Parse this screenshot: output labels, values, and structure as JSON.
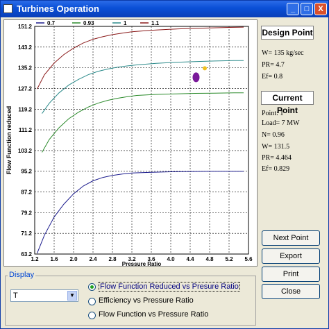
{
  "window": {
    "title": "Turbines Operation",
    "minimize": "_",
    "maximize": "□",
    "close": "X"
  },
  "chart_data": {
    "type": "line",
    "title": "",
    "xlabel": "Pressure Ratio",
    "ylabel": "Flow Function reduced",
    "xlim": [
      1.2,
      5.6
    ],
    "ylim": [
      63.2,
      151.2
    ],
    "x_ticks": [
      "1.2",
      "1.6",
      "2.0",
      "2.4",
      "2.8",
      "3.2",
      "3.6",
      "4.0",
      "4.4",
      "4.8",
      "5.2",
      "5.6"
    ],
    "y_ticks": [
      "63.2",
      "71.2",
      "79.2",
      "87.2",
      "95.2",
      "103.2",
      "111.2",
      "119.2",
      "127.2",
      "135.2",
      "143.2",
      "151.2"
    ],
    "grid": true,
    "legend_position": "top",
    "series": [
      {
        "name": "0.7",
        "color": "#1a1a8c",
        "x": [
          1.25,
          1.4,
          1.6,
          1.8,
          2.0,
          2.2,
          2.4,
          2.6,
          2.8,
          3.0,
          3.2,
          3.6,
          4.0,
          4.4,
          4.8,
          5.2,
          5.5
        ],
        "y": [
          63.5,
          70.5,
          77.5,
          82.5,
          86.5,
          89.5,
          91.5,
          92.8,
          93.6,
          94.1,
          94.5,
          94.8,
          95.0,
          95.1,
          95.2,
          95.2,
          95.2
        ]
      },
      {
        "name": "0.93",
        "color": "#2a8a2a",
        "x": [
          1.35,
          1.5,
          1.7,
          1.9,
          2.1,
          2.3,
          2.5,
          2.7,
          2.9,
          3.1,
          3.3,
          3.7,
          4.1,
          4.5,
          4.9,
          5.3,
          5.5
        ],
        "y": [
          102.5,
          107.5,
          112.0,
          115.5,
          118.0,
          120.0,
          121.5,
          122.6,
          123.4,
          124.0,
          124.5,
          124.9,
          125.1,
          125.3,
          125.4,
          125.5,
          125.5
        ]
      },
      {
        "name": "1",
        "color": "#2a8a8a",
        "x": [
          1.35,
          1.5,
          1.7,
          1.9,
          2.1,
          2.3,
          2.5,
          2.7,
          2.9,
          3.1,
          3.3,
          3.7,
          4.1,
          4.5,
          4.9,
          5.3,
          5.5
        ],
        "y": [
          117.5,
          121.5,
          125.5,
          128.5,
          130.7,
          132.5,
          133.8,
          134.7,
          135.4,
          135.9,
          136.3,
          136.9,
          137.3,
          137.6,
          137.8,
          138.0,
          138.0
        ]
      },
      {
        "name": "1.1",
        "color": "#8a1a1a",
        "x": [
          1.25,
          1.4,
          1.6,
          1.8,
          2.0,
          2.2,
          2.4,
          2.6,
          2.8,
          3.0,
          3.2,
          3.6,
          4.0,
          4.4,
          4.8,
          5.2,
          5.5
        ],
        "y": [
          127.0,
          132.5,
          137.0,
          140.3,
          142.8,
          144.8,
          146.2,
          147.2,
          148.0,
          148.6,
          149.1,
          149.7,
          150.1,
          150.4,
          150.6,
          150.8,
          150.9
        ]
      }
    ],
    "design_point": {
      "x": 4.7,
      "y": 135.0,
      "color": "#f0c020"
    },
    "current_point": {
      "x": 4.464,
      "y": 131.5,
      "color": "#7a1a9a"
    }
  },
  "design": {
    "header": "Design Point",
    "w": "W= 135 kg/sec",
    "pr": "PR= 4.7",
    "ef": "Ef= 0.8"
  },
  "current": {
    "header": "Current Point",
    "point": "Point: 1",
    "load": "Load= 7 MW",
    "n": "N= 0.96",
    "w": "W= 131.5",
    "pr": "PR= 4.464",
    "ef": "Ef= 0.829"
  },
  "buttons": {
    "next": "Next Point",
    "export": "Export",
    "print": "Print",
    "close": "Close"
  },
  "display": {
    "label": "Display",
    "select_value": "T",
    "options": [
      "Flow Function Reduced vs Presure Ratio",
      "Efficiency vs Pressure Ratio",
      "Flow Function vs Pressure Ratio"
    ],
    "selected_index": 0
  }
}
